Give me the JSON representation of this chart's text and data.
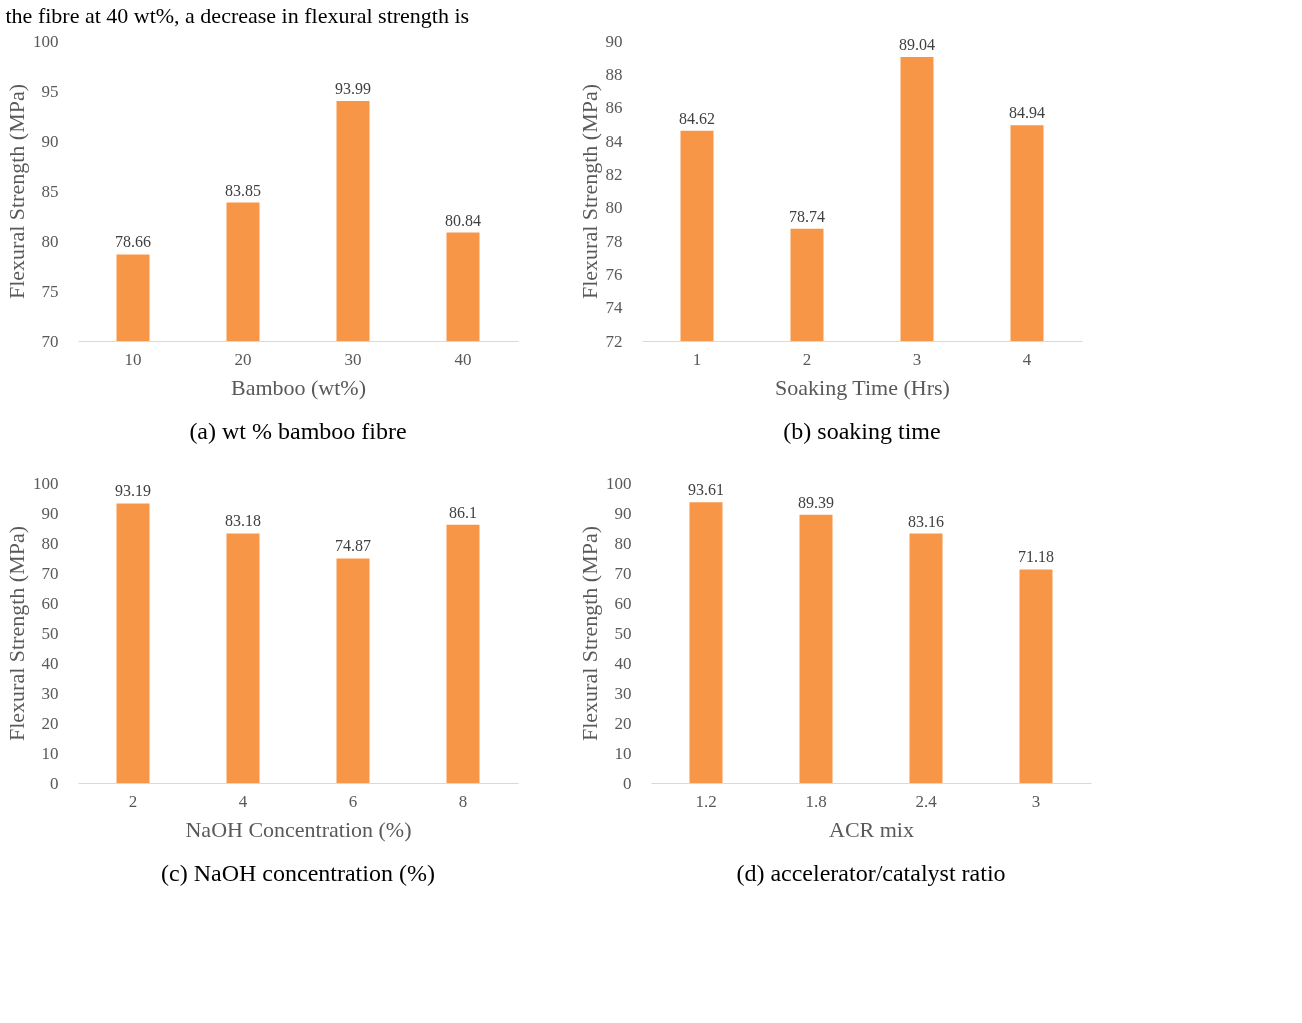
{
  "chart_data": [
    {
      "type": "bar",
      "title": "(a) wt % bamboo fibre",
      "xlabel": "Bamboo (wt%)",
      "ylabel": "Flexural Strength (MPa)",
      "categories": [
        "10",
        "20",
        "30",
        "40"
      ],
      "values": [
        78.66,
        83.85,
        93.99,
        80.84
      ],
      "color": "#f79646",
      "ylim": [
        70,
        100
      ],
      "yticks": [
        70,
        75,
        80,
        85,
        90,
        95,
        100
      ],
      "grid": false,
      "data_labels": true,
      "annotations": [
        "the fibre at 40 wt%, a decrease in flexural strength is"
      ]
    },
    {
      "type": "bar",
      "title": "(b) soaking time",
      "xlabel": "Soaking Time (Hrs)",
      "ylabel": "Flexural Strength (MPa)",
      "categories": [
        "1",
        "2",
        "3",
        "4"
      ],
      "values": [
        84.62,
        78.74,
        89.04,
        84.94
      ],
      "color": "#f79646",
      "ylim": [
        72,
        90
      ],
      "yticks": [
        72,
        74,
        76,
        78,
        80,
        82,
        84,
        86,
        88,
        90
      ],
      "grid": false,
      "data_labels": true
    },
    {
      "type": "bar",
      "title": "(c) NaOH concentration (%)",
      "xlabel": "NaOH Concentration (%)",
      "ylabel": "Flexural Strength (MPa)",
      "categories": [
        "2",
        "4",
        "6",
        "8"
      ],
      "values": [
        93.19,
        83.18,
        74.87,
        86.1
      ],
      "color": "#f79646",
      "ylim": [
        0,
        100
      ],
      "yticks": [
        0,
        10,
        20,
        30,
        40,
        50,
        60,
        70,
        80,
        90,
        100
      ],
      "grid": false,
      "data_labels": true
    },
    {
      "type": "bar",
      "title": "(d) accelerator/catalyst ratio",
      "xlabel": "ACR mix",
      "ylabel": "Flexural Strength (MPa)",
      "categories": [
        "1.2",
        "1.8",
        "2.4",
        "3"
      ],
      "values": [
        93.61,
        89.39,
        83.16,
        71.18
      ],
      "color": "#f79646",
      "ylim": [
        0,
        100
      ],
      "yticks": [
        0,
        10,
        20,
        30,
        40,
        50,
        60,
        70,
        80,
        90,
        100
      ],
      "grid": false,
      "data_labels": true
    }
  ]
}
